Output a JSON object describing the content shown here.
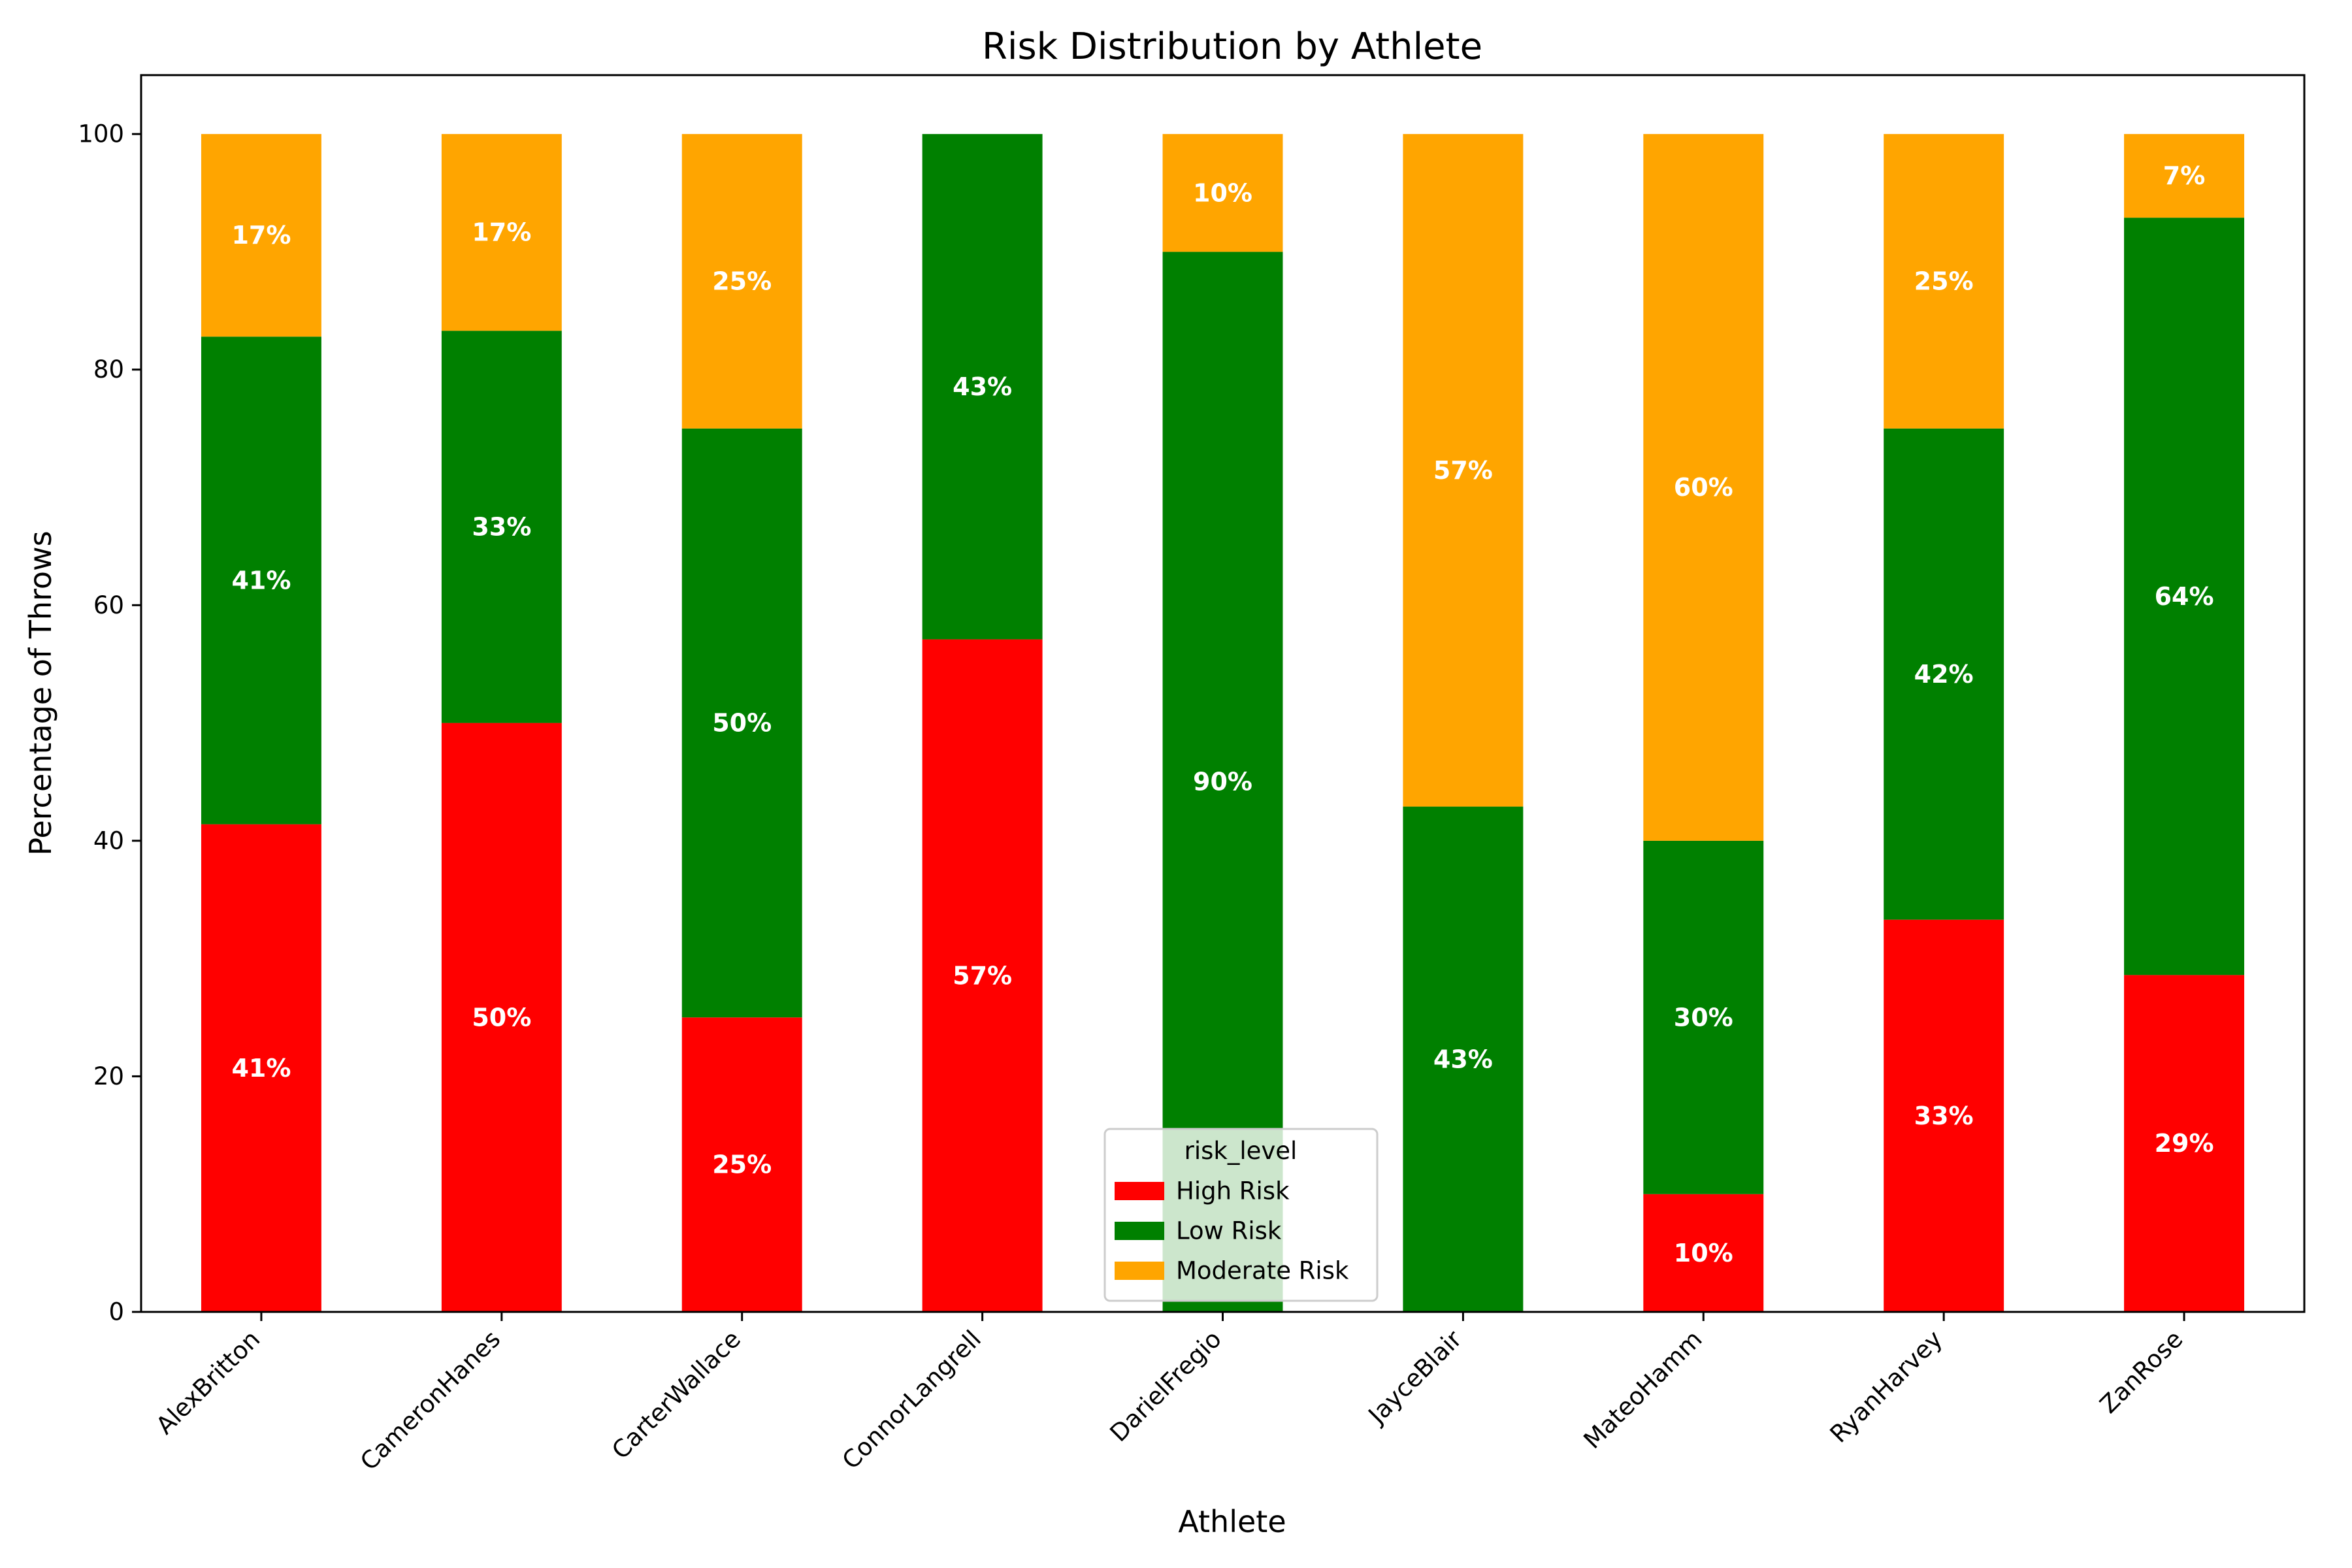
{
  "chart_data": {
    "type": "bar",
    "stacked": true,
    "title": "Risk Distribution by Athlete",
    "xlabel": "Athlete",
    "ylabel": "Percentage of Throws",
    "ylim": [
      0,
      105
    ],
    "yticks": [
      0,
      20,
      40,
      60,
      80,
      100
    ],
    "grid": false,
    "categories": [
      "AlexBritton",
      "CameronHanes",
      "CarterWallace",
      "ConnorLangrell",
      "DarielFregio",
      "JayceBlair",
      "MateoHamm",
      "RyanHarvey",
      "ZanRose"
    ],
    "series": [
      {
        "name": "High Risk",
        "color": "#ff0000",
        "values": [
          41.4,
          50.0,
          25.0,
          57.1,
          0,
          0,
          10.0,
          33.3,
          28.6
        ]
      },
      {
        "name": "Low Risk",
        "color": "#008000",
        "values": [
          41.4,
          33.3,
          50.0,
          42.9,
          90.0,
          42.9,
          30.0,
          41.7,
          64.3
        ]
      },
      {
        "name": "Moderate Risk",
        "color": "#ffa500",
        "values": [
          17.2,
          16.7,
          25.0,
          0,
          10.0,
          57.1,
          60.0,
          25.0,
          7.1
        ]
      }
    ],
    "legend": {
      "title": "risk_level",
      "position": "lower center"
    }
  }
}
